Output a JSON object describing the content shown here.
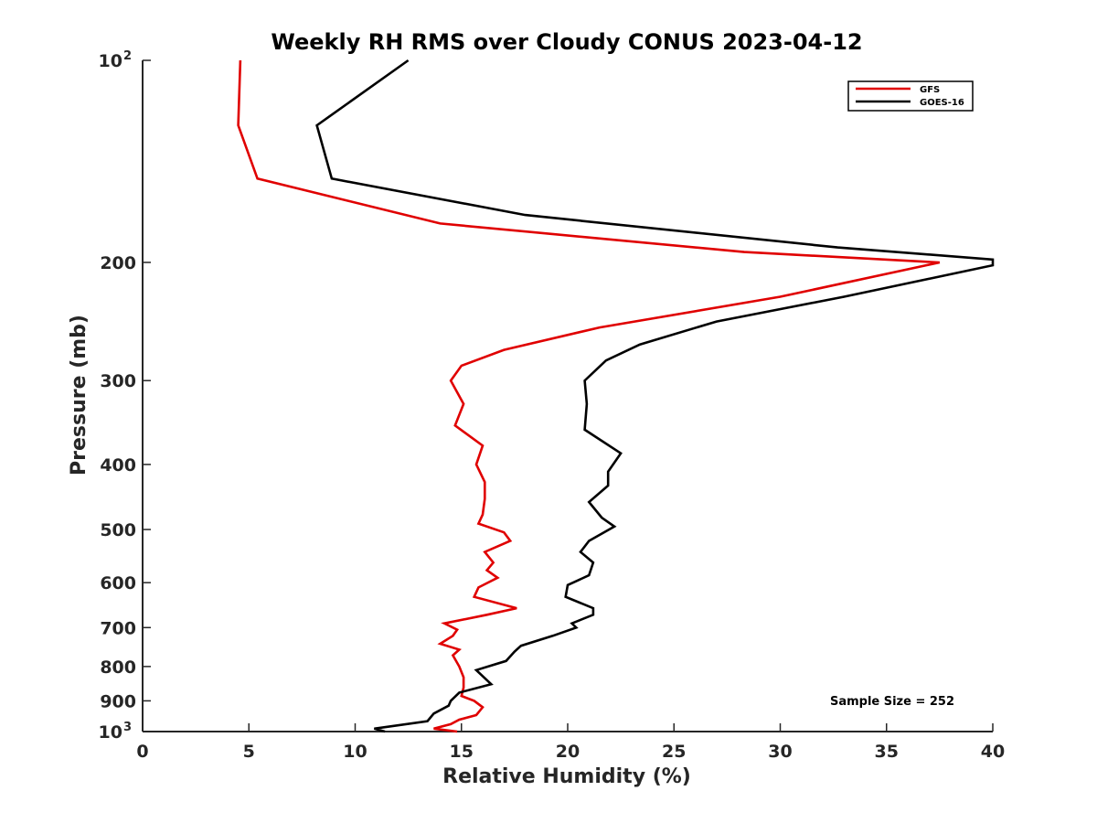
{
  "chart_data": {
    "type": "line",
    "title": "Weekly RH RMS over Cloudy CONUS 2023-04-12",
    "xlabel": "Relative Humidity (%)",
    "ylabel": "Pressure (mb)",
    "xlim": [
      0,
      40
    ],
    "ylim": [
      100,
      1000
    ],
    "y_scale": "log",
    "y_reversed": true,
    "grid": false,
    "x_ticks": [
      "0",
      "5",
      "10",
      "15",
      "20",
      "25",
      "30",
      "35",
      "40"
    ],
    "y_ticks": [
      {
        "value": 100,
        "base": "10",
        "exp": "2"
      },
      {
        "value": 200,
        "label": "200"
      },
      {
        "value": 300,
        "label": "300"
      },
      {
        "value": 400,
        "label": "400"
      },
      {
        "value": 500,
        "label": "500"
      },
      {
        "value": 600,
        "label": "600"
      },
      {
        "value": 700,
        "label": "700"
      },
      {
        "value": 800,
        "label": "800"
      },
      {
        "value": 900,
        "label": "900"
      },
      {
        "value": 1000,
        "base": "10",
        "exp": "3"
      }
    ],
    "legend_position": "top-right",
    "series": [
      {
        "name": "GFS",
        "color": "#e00000",
        "points": [
          [
            4.6,
            100
          ],
          [
            4.5,
            125
          ],
          [
            5.4,
            150
          ],
          [
            14.0,
            175
          ],
          [
            28.3,
            193
          ],
          [
            37.5,
            200
          ],
          [
            30.0,
            225
          ],
          [
            21.5,
            250
          ],
          [
            17.0,
            270
          ],
          [
            15.0,
            285
          ],
          [
            14.5,
            300
          ],
          [
            15.1,
            325
          ],
          [
            14.7,
            350
          ],
          [
            16.0,
            375
          ],
          [
            15.7,
            400
          ],
          [
            16.1,
            425
          ],
          [
            16.1,
            450
          ],
          [
            16.0,
            475
          ],
          [
            15.8,
            490
          ],
          [
            17.0,
            505
          ],
          [
            17.3,
            520
          ],
          [
            16.1,
            540
          ],
          [
            16.5,
            560
          ],
          [
            16.2,
            575
          ],
          [
            16.7,
            590
          ],
          [
            15.8,
            610
          ],
          [
            15.6,
            630
          ],
          [
            17.6,
            655
          ],
          [
            16.2,
            670
          ],
          [
            14.2,
            690
          ],
          [
            14.8,
            705
          ],
          [
            14.6,
            720
          ],
          [
            14.0,
            740
          ],
          [
            14.9,
            755
          ],
          [
            14.6,
            770
          ],
          [
            14.9,
            800
          ],
          [
            15.1,
            830
          ],
          [
            15.1,
            860
          ],
          [
            15.0,
            885
          ],
          [
            15.6,
            900
          ],
          [
            16.0,
            920
          ],
          [
            15.7,
            945
          ],
          [
            14.9,
            960
          ],
          [
            14.5,
            975
          ],
          [
            13.7,
            990
          ],
          [
            14.8,
            1000
          ]
        ]
      },
      {
        "name": "GOES-16",
        "color": "#000000",
        "points": [
          [
            12.5,
            100
          ],
          [
            8.2,
            125
          ],
          [
            8.9,
            150
          ],
          [
            18.0,
            170
          ],
          [
            32.7,
            190
          ],
          [
            40.0,
            198
          ],
          [
            40.0,
            202
          ],
          [
            33.0,
            225
          ],
          [
            27.0,
            245
          ],
          [
            23.4,
            265
          ],
          [
            21.8,
            280
          ],
          [
            20.8,
            300
          ],
          [
            20.9,
            325
          ],
          [
            20.8,
            355
          ],
          [
            22.5,
            385
          ],
          [
            21.9,
            410
          ],
          [
            21.9,
            430
          ],
          [
            21.0,
            455
          ],
          [
            21.6,
            480
          ],
          [
            22.2,
            495
          ],
          [
            21.0,
            520
          ],
          [
            20.6,
            540
          ],
          [
            21.2,
            560
          ],
          [
            21.0,
            585
          ],
          [
            20.0,
            605
          ],
          [
            19.9,
            630
          ],
          [
            21.2,
            655
          ],
          [
            21.2,
            670
          ],
          [
            20.2,
            690
          ],
          [
            20.4,
            700
          ],
          [
            19.3,
            720
          ],
          [
            17.8,
            745
          ],
          [
            17.5,
            760
          ],
          [
            17.1,
            785
          ],
          [
            15.7,
            810
          ],
          [
            16.4,
            850
          ],
          [
            14.9,
            875
          ],
          [
            14.5,
            900
          ],
          [
            14.4,
            915
          ],
          [
            13.7,
            940
          ],
          [
            13.4,
            965
          ],
          [
            10.9,
            990
          ],
          [
            11.4,
            1000
          ]
        ]
      }
    ],
    "annotation": "Sample Size = 252"
  }
}
